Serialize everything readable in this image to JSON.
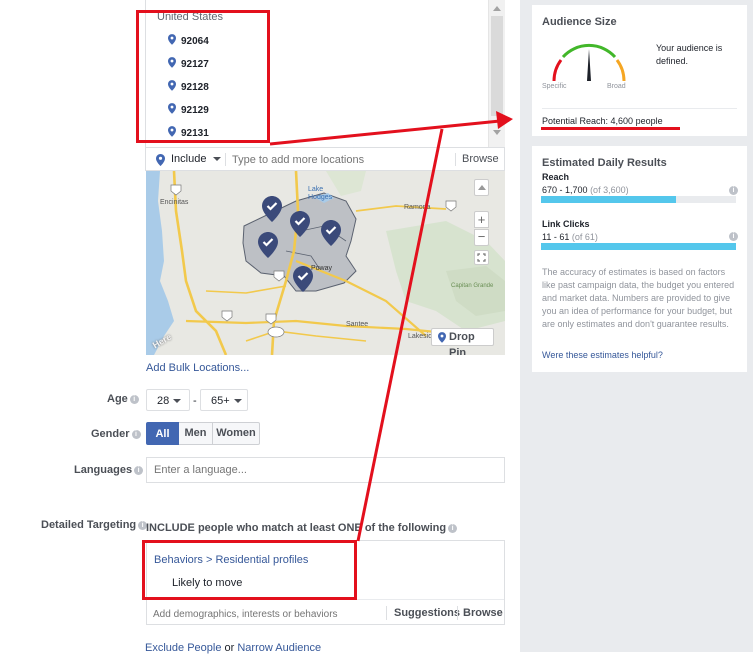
{
  "locations": {
    "country": "United States",
    "zip_codes": [
      "92064",
      "92127",
      "92128",
      "92129",
      "92131"
    ],
    "include_label": "Include",
    "placeholder": "Type to add more locations",
    "browse_label": "Browse"
  },
  "map": {
    "places": [
      "Encinitas",
      "Lake Hodges",
      "Ramona",
      "Poway",
      "Santee",
      "Lakeside",
      "Capitan Grande",
      "Here"
    ],
    "drop_pin_label": "Drop Pin"
  },
  "add_bulk_label": "Add Bulk Locations...",
  "age": {
    "label": "Age",
    "min": "28",
    "separator": "-",
    "max": "65+"
  },
  "gender": {
    "label": "Gender",
    "options": [
      "All",
      "Men",
      "Women"
    ],
    "selected": "All"
  },
  "languages": {
    "label": "Languages",
    "placeholder": "Enter a language..."
  },
  "detailed_targeting": {
    "label": "Detailed Targeting",
    "include_text": "INCLUDE people who match at least ONE of the following",
    "breadcrumb_parent": "Behaviors",
    "breadcrumb_separator": ">",
    "breadcrumb_child": "Residential profiles",
    "item": "Likely to move",
    "placeholder": "Add demographics, interests or behaviors",
    "suggestions_label": "Suggestions",
    "browse_label": "Browse"
  },
  "footer_links": {
    "exclude": "Exclude People",
    "or": "or",
    "narrow": "Narrow Audience"
  },
  "audience_size": {
    "title": "Audience Size",
    "gauge_left": "Specific",
    "gauge_right": "Broad",
    "gauge_level": 0.5,
    "description": "Your audience is defined.",
    "potential_reach": "Potential Reach: 4,600 people"
  },
  "estimated_results": {
    "title": "Estimated Daily Results",
    "reach": {
      "label": "Reach",
      "range": "670 - 1,700",
      "of_total": "(of 3,600)",
      "fill": 0.69
    },
    "link_clicks": {
      "label": "Link Clicks",
      "range": "11 - 61",
      "of_total": "(of 61)",
      "fill": 1.0
    },
    "note": "The accuracy of estimates is based on factors like past campaign data, the budget you entered and market data. Numbers are provided to give you an idea of performance for your budget, but are only estimates and don't guarantee results.",
    "feedback_link": "Were these estimates helpful?"
  },
  "colors": {
    "annotation": "#e3101d",
    "facebook_blue": "#4267b2",
    "bar": "#54c7ec",
    "panel_bg": "#e9ebee"
  }
}
